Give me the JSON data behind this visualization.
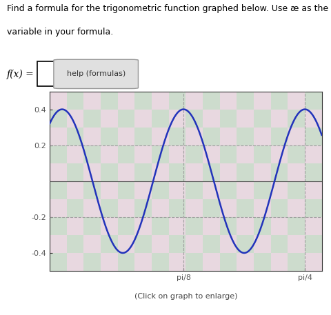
{
  "title_line1": "Find a formula for the trigonometric function graphed below. Use æ as the independent",
  "title_line2": "variable in your formula.",
  "fx_label": "f(x) =",
  "help_label": "help (formulas)",
  "caption": "(Click on graph to enlarge)",
  "amplitude": 0.4,
  "angular_freq": 16,
  "phase": 0,
  "xmin": -0.04,
  "xmax": 0.84,
  "ymin": -0.5,
  "ymax": 0.5,
  "ytick_vals": [
    -0.4,
    -0.2,
    0.2,
    0.4
  ],
  "ytick_labels": [
    "-0.4",
    "-0.2",
    "0.2",
    "0.4"
  ],
  "xtick_vals": [
    0.392699081698724,
    0.785398163397448
  ],
  "xtick_labels": [
    "pi/8",
    "pi/4"
  ],
  "bg_color": "#cddccd",
  "bg_color2": "#e8d8e0",
  "curve_color": "#2233bb",
  "curve_lw": 1.8,
  "dash_color": "#999999",
  "spine_color": "#333333",
  "tick_color": "#555555",
  "font_size_title": 9,
  "font_size_axis": 8,
  "font_size_caption": 8,
  "pi_over_8": 0.392699081698724,
  "pi_over_4": 0.785398163397448
}
